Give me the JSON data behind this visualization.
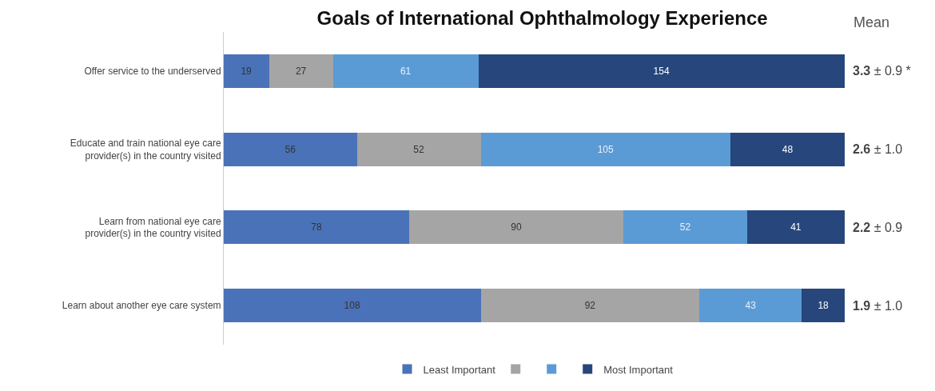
{
  "chart_data": {
    "type": "bar",
    "orientation": "horizontal",
    "stacked": true,
    "title": "Goals of International Ophthalmology Experience",
    "categories": [
      "Offer service to the underserved",
      "Educate and train national eye care provider(s) in the country visited",
      "Learn from national eye care provider(s) in the country visited",
      "Learn about another eye care system"
    ],
    "series": [
      {
        "name": "Least Important",
        "color": "#4a72b8",
        "values": [
          19,
          56,
          78,
          108
        ]
      },
      {
        "color": "#a5a5a5",
        "values": [
          27,
          52,
          90,
          92
        ]
      },
      {
        "color": "#5b9bd5",
        "values": [
          61,
          105,
          52,
          43
        ]
      },
      {
        "name": "Most Important",
        "color": "#26467c",
        "values": [
          154,
          48,
          41,
          18
        ]
      }
    ],
    "xlim": [
      0,
      261
    ],
    "data_labels": true,
    "tick_labels": "y",
    "grid": false,
    "legend": "bottom",
    "annotations": [
      "Mean",
      "3.3 ± 0.9 *",
      "2.6 ± 1.0",
      "2.2 ± 0.9",
      "1.9 ± 1.0"
    ]
  }
}
